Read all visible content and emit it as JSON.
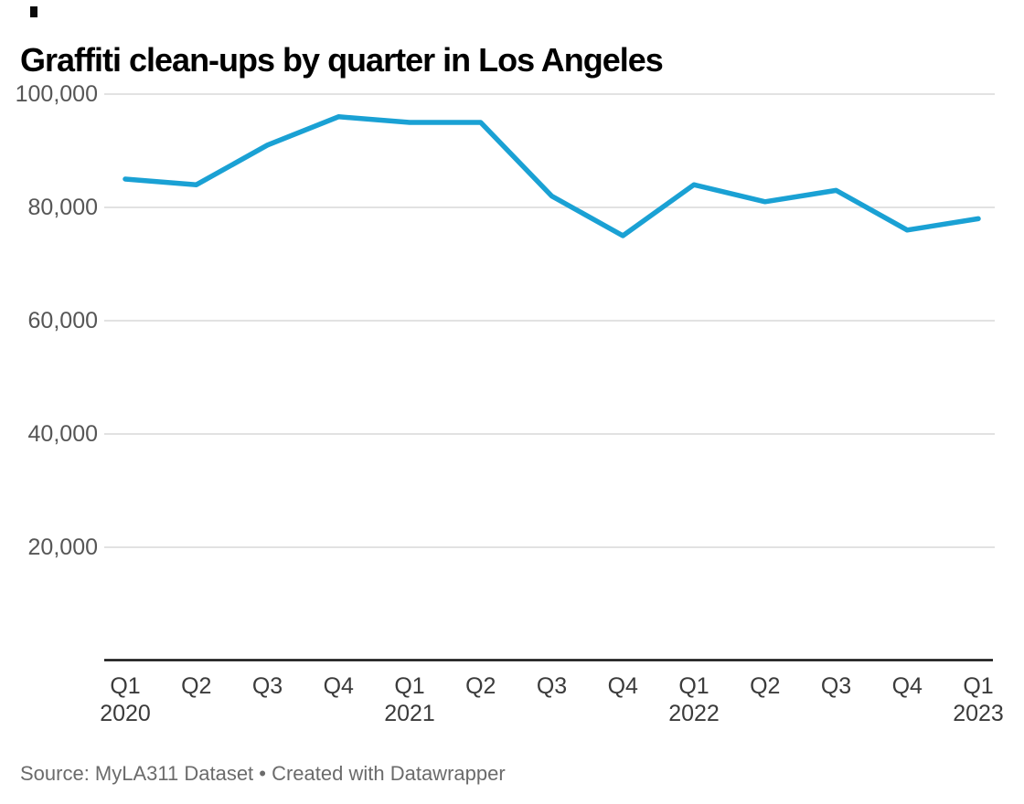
{
  "source": "Source: MyLA311 Dataset • Created with Datawrapper",
  "colors": {
    "line": "#1AA1D4",
    "grid": "#D9D9D9",
    "axis": "#121212",
    "y_tick_label": "#565656",
    "x_tick_label": "#3B3B3B",
    "title": "#000000",
    "source": "#6B6B6B"
  },
  "chart_data": {
    "type": "line",
    "title": "Graffiti clean-ups by quarter in Los Angeles",
    "xlabel": "",
    "ylabel": "",
    "ylim": [
      0,
      100000
    ],
    "grid": "horizontal",
    "legend": "none",
    "x_ticks": [
      {
        "quarter": "Q1",
        "year": "2020"
      },
      {
        "quarter": "Q2",
        "year": ""
      },
      {
        "quarter": "Q3",
        "year": ""
      },
      {
        "quarter": "Q4",
        "year": ""
      },
      {
        "quarter": "Q1",
        "year": "2021"
      },
      {
        "quarter": "Q2",
        "year": ""
      },
      {
        "quarter": "Q3",
        "year": ""
      },
      {
        "quarter": "Q4",
        "year": ""
      },
      {
        "quarter": "Q1",
        "year": "2022"
      },
      {
        "quarter": "Q2",
        "year": ""
      },
      {
        "quarter": "Q3",
        "year": ""
      },
      {
        "quarter": "Q4",
        "year": ""
      },
      {
        "quarter": "Q1",
        "year": "2023"
      }
    ],
    "categories": [
      "Q1 2020",
      "Q2 2020",
      "Q3 2020",
      "Q4 2020",
      "Q1 2021",
      "Q2 2021",
      "Q3 2021",
      "Q4 2021",
      "Q1 2022",
      "Q2 2022",
      "Q3 2022",
      "Q4 2022",
      "Q1 2023"
    ],
    "values": [
      85000,
      84000,
      91000,
      96000,
      95000,
      95000,
      82000,
      75000,
      84000,
      81000,
      83000,
      76000,
      78000
    ],
    "y_ticks": [
      {
        "value": 100000,
        "label": "100,000"
      },
      {
        "value": 80000,
        "label": "80,000"
      },
      {
        "value": 60000,
        "label": "60,000"
      },
      {
        "value": 40000,
        "label": "40,000"
      },
      {
        "value": 20000,
        "label": "20,000"
      }
    ]
  }
}
